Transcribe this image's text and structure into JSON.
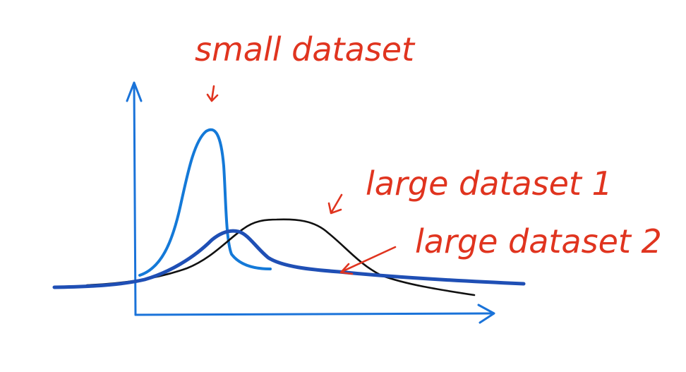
{
  "annotations": {
    "small": "small dataset",
    "large1": "large dataset 1",
    "large2": "large dataset 2"
  },
  "colors": {
    "axes": "#1a73d9",
    "small_curve": "#1479d8",
    "large1_curve": "#111111",
    "large2_curve": "#1f4fb5",
    "annotation": "#e0341f"
  }
}
